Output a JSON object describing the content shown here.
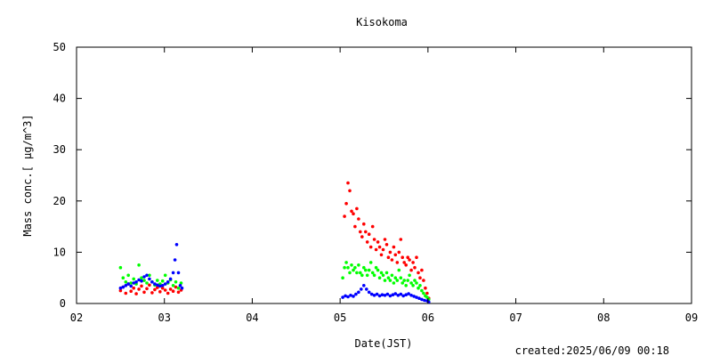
{
  "chart_data": {
    "type": "scatter",
    "title": "Kisokoma",
    "xlabel": "Date(JST)",
    "ylabel": "Mass conc.[ μg/m^3]",
    "footer": "created:2025/06/09 00:18",
    "xlim": [
      2,
      9
    ],
    "ylim": [
      0,
      50
    ],
    "x_ticks": [
      2,
      3,
      4,
      5,
      6,
      7,
      8,
      9
    ],
    "x_tick_labels": [
      "02",
      "03",
      "04",
      "05",
      "06",
      "07",
      "08",
      "09"
    ],
    "y_ticks": [
      0,
      10,
      20,
      30,
      40,
      50
    ],
    "y_tick_labels": [
      "0",
      "10",
      "20",
      "30",
      "40",
      "50"
    ],
    "grid": false,
    "series": [
      {
        "color": "#ff0000",
        "points": [
          [
            2.5,
            2.5
          ],
          [
            2.53,
            3.2
          ],
          [
            2.56,
            2.0
          ],
          [
            2.59,
            3.8
          ],
          [
            2.62,
            2.4
          ],
          [
            2.65,
            3.0
          ],
          [
            2.68,
            1.9
          ],
          [
            2.71,
            2.8
          ],
          [
            2.74,
            3.4
          ],
          [
            2.77,
            2.2
          ],
          [
            2.8,
            2.9
          ],
          [
            2.83,
            3.6
          ],
          [
            2.86,
            2.1
          ],
          [
            2.89,
            2.7
          ],
          [
            2.92,
            3.1
          ],
          [
            2.95,
            2.3
          ],
          [
            2.98,
            3.0
          ],
          [
            3.01,
            2.6
          ],
          [
            3.04,
            2.0
          ],
          [
            3.07,
            2.8
          ],
          [
            3.1,
            2.4
          ],
          [
            3.13,
            3.2
          ],
          [
            3.16,
            2.2
          ],
          [
            3.19,
            2.6
          ],
          [
            5.05,
            17.0
          ],
          [
            5.07,
            19.5
          ],
          [
            5.09,
            23.5
          ],
          [
            5.11,
            22.0
          ],
          [
            5.13,
            18.0
          ],
          [
            5.15,
            17.5
          ],
          [
            5.17,
            15.0
          ],
          [
            5.19,
            18.5
          ],
          [
            5.21,
            16.5
          ],
          [
            5.23,
            14.0
          ],
          [
            5.25,
            13.0
          ],
          [
            5.27,
            15.5
          ],
          [
            5.29,
            14.0
          ],
          [
            5.31,
            12.0
          ],
          [
            5.33,
            13.5
          ],
          [
            5.35,
            11.0
          ],
          [
            5.37,
            15.0
          ],
          [
            5.39,
            12.5
          ],
          [
            5.41,
            10.5
          ],
          [
            5.43,
            12.0
          ],
          [
            5.45,
            11.0
          ],
          [
            5.47,
            9.5
          ],
          [
            5.49,
            10.5
          ],
          [
            5.51,
            12.5
          ],
          [
            5.53,
            11.5
          ],
          [
            5.55,
            9.0
          ],
          [
            5.57,
            10.0
          ],
          [
            5.59,
            8.5
          ],
          [
            5.61,
            11.0
          ],
          [
            5.63,
            9.5
          ],
          [
            5.65,
            8.0
          ],
          [
            5.67,
            10.0
          ],
          [
            5.69,
            12.5
          ],
          [
            5.71,
            9.0
          ],
          [
            5.73,
            8.0
          ],
          [
            5.75,
            7.5
          ],
          [
            5.77,
            9.0
          ],
          [
            5.79,
            8.5
          ],
          [
            5.81,
            6.5
          ],
          [
            5.83,
            8.0
          ],
          [
            5.85,
            7.0
          ],
          [
            5.87,
            9.0
          ],
          [
            5.89,
            6.0
          ],
          [
            5.91,
            5.0
          ],
          [
            5.93,
            6.5
          ],
          [
            5.95,
            4.5
          ],
          [
            5.97,
            3.0
          ],
          [
            5.99,
            2.0
          ],
          [
            6.01,
            1.0
          ]
        ]
      },
      {
        "color": "#00ff00",
        "points": [
          [
            2.5,
            7.0
          ],
          [
            2.53,
            5.0
          ],
          [
            2.56,
            4.2
          ],
          [
            2.59,
            5.5
          ],
          [
            2.62,
            4.0
          ],
          [
            2.65,
            4.8
          ],
          [
            2.68,
            3.8
          ],
          [
            2.71,
            7.5
          ],
          [
            2.74,
            5.0
          ],
          [
            2.77,
            4.5
          ],
          [
            2.8,
            4.0
          ],
          [
            2.83,
            5.5
          ],
          [
            2.86,
            4.2
          ],
          [
            2.89,
            3.6
          ],
          [
            2.92,
            4.5
          ],
          [
            2.95,
            3.8
          ],
          [
            2.98,
            4.4
          ],
          [
            3.01,
            5.5
          ],
          [
            3.04,
            4.0
          ],
          [
            3.07,
            4.6
          ],
          [
            3.1,
            3.5
          ],
          [
            3.13,
            4.2
          ],
          [
            3.16,
            3.0
          ],
          [
            3.19,
            4.0
          ],
          [
            5.03,
            5.0
          ],
          [
            5.05,
            7.0
          ],
          [
            5.07,
            8.0
          ],
          [
            5.09,
            7.0
          ],
          [
            5.11,
            6.0
          ],
          [
            5.13,
            7.5
          ],
          [
            5.15,
            6.5
          ],
          [
            5.17,
            7.0
          ],
          [
            5.19,
            6.0
          ],
          [
            5.21,
            7.5
          ],
          [
            5.23,
            6.0
          ],
          [
            5.25,
            5.5
          ],
          [
            5.27,
            7.0
          ],
          [
            5.29,
            6.5
          ],
          [
            5.31,
            5.5
          ],
          [
            5.33,
            6.5
          ],
          [
            5.35,
            8.0
          ],
          [
            5.37,
            6.0
          ],
          [
            5.39,
            5.5
          ],
          [
            5.41,
            7.0
          ],
          [
            5.43,
            6.5
          ],
          [
            5.45,
            5.0
          ],
          [
            5.47,
            6.0
          ],
          [
            5.49,
            5.5
          ],
          [
            5.51,
            4.5
          ],
          [
            5.53,
            6.0
          ],
          [
            5.55,
            5.0
          ],
          [
            5.57,
            4.5
          ],
          [
            5.59,
            5.5
          ],
          [
            5.61,
            4.0
          ],
          [
            5.63,
            5.0
          ],
          [
            5.65,
            4.5
          ],
          [
            5.67,
            6.5
          ],
          [
            5.69,
            5.0
          ],
          [
            5.71,
            4.0
          ],
          [
            5.73,
            4.5
          ],
          [
            5.75,
            3.5
          ],
          [
            5.77,
            4.5
          ],
          [
            5.79,
            5.5
          ],
          [
            5.81,
            4.0
          ],
          [
            5.83,
            3.5
          ],
          [
            5.85,
            4.5
          ],
          [
            5.87,
            4.0
          ],
          [
            5.89,
            3.0
          ],
          [
            5.91,
            3.5
          ],
          [
            5.93,
            2.5
          ],
          [
            5.95,
            2.0
          ],
          [
            5.97,
            1.5
          ],
          [
            5.99,
            1.2
          ],
          [
            6.01,
            0.8
          ]
        ]
      },
      {
        "color": "#0000ff",
        "points": [
          [
            2.5,
            3.0
          ],
          [
            2.53,
            3.2
          ],
          [
            2.56,
            3.5
          ],
          [
            2.59,
            3.8
          ],
          [
            2.62,
            3.4
          ],
          [
            2.65,
            4.0
          ],
          [
            2.68,
            4.2
          ],
          [
            2.71,
            4.6
          ],
          [
            2.74,
            4.4
          ],
          [
            2.77,
            5.2
          ],
          [
            2.8,
            5.5
          ],
          [
            2.83,
            4.8
          ],
          [
            2.86,
            4.2
          ],
          [
            2.89,
            3.8
          ],
          [
            2.92,
            3.6
          ],
          [
            2.95,
            3.4
          ],
          [
            2.98,
            3.5
          ],
          [
            3.01,
            3.8
          ],
          [
            3.04,
            4.2
          ],
          [
            3.07,
            4.8
          ],
          [
            3.1,
            6.0
          ],
          [
            3.12,
            8.5
          ],
          [
            3.14,
            11.5
          ],
          [
            3.16,
            6.0
          ],
          [
            3.18,
            3.5
          ],
          [
            3.2,
            3.0
          ],
          [
            5.03,
            1.2
          ],
          [
            5.06,
            1.5
          ],
          [
            5.09,
            1.3
          ],
          [
            5.12,
            1.6
          ],
          [
            5.15,
            1.4
          ],
          [
            5.18,
            1.8
          ],
          [
            5.21,
            2.2
          ],
          [
            5.24,
            2.8
          ],
          [
            5.27,
            3.5
          ],
          [
            5.3,
            2.8
          ],
          [
            5.33,
            2.2
          ],
          [
            5.36,
            1.8
          ],
          [
            5.39,
            1.6
          ],
          [
            5.42,
            1.8
          ],
          [
            5.45,
            1.5
          ],
          [
            5.48,
            1.7
          ],
          [
            5.51,
            1.6
          ],
          [
            5.54,
            1.8
          ],
          [
            5.57,
            1.5
          ],
          [
            5.6,
            1.7
          ],
          [
            5.63,
            1.9
          ],
          [
            5.66,
            1.6
          ],
          [
            5.69,
            1.8
          ],
          [
            5.72,
            1.5
          ],
          [
            5.75,
            1.7
          ],
          [
            5.78,
            1.9
          ],
          [
            5.81,
            1.6
          ],
          [
            5.84,
            1.4
          ],
          [
            5.87,
            1.2
          ],
          [
            5.9,
            1.0
          ],
          [
            5.93,
            0.8
          ],
          [
            5.96,
            0.6
          ],
          [
            5.99,
            0.5
          ],
          [
            6.01,
            0.3
          ]
        ]
      }
    ]
  }
}
